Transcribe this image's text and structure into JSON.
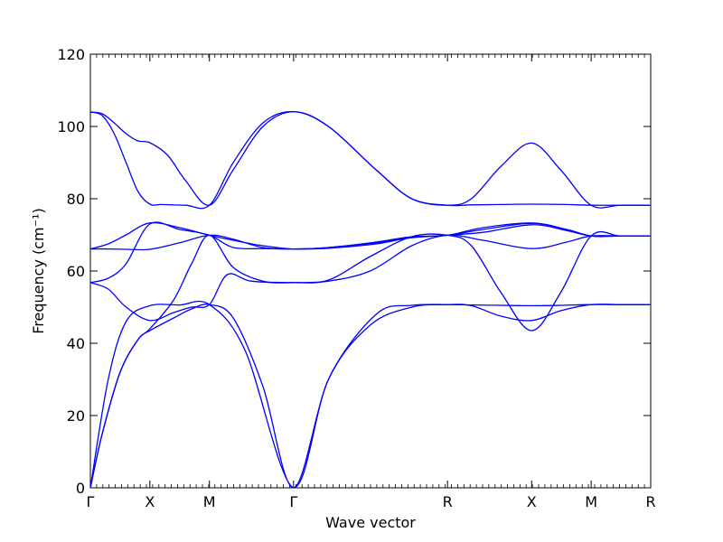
{
  "chart_data": {
    "type": "line",
    "xlabel": "Wave vector",
    "ylabel": "Frequency (cm⁻¹)",
    "ylim": [
      0,
      120
    ],
    "yticks": [
      0,
      20,
      40,
      60,
      80,
      100,
      120
    ],
    "grid": false,
    "line_color": "#0000ff",
    "kpoints": [
      {
        "label": "Γ",
        "pos": 0.0
      },
      {
        "label": "X",
        "pos": 0.5
      },
      {
        "label": "M",
        "pos": 1.0
      },
      {
        "label": "Γ",
        "pos": 1.707
      },
      {
        "label": "R",
        "pos": 3.0
      },
      {
        "label": "X",
        "pos": 3.707
      },
      {
        "label": "M",
        "pos": 4.207
      },
      {
        "label": "R",
        "pos": 4.707
      }
    ],
    "bands": [
      {
        "x": [
          0,
          0.1,
          0.25,
          0.4,
          0.5,
          0.7,
          0.85,
          1.0,
          1.2,
          1.45,
          1.707,
          2.0,
          2.35,
          2.7,
          3.0,
          3.2,
          3.45,
          3.707,
          3.95,
          4.207,
          4.45,
          4.707
        ],
        "y": [
          0,
          15,
          32,
          41,
          43.5,
          47,
          49.5,
          50.7,
          47,
          28,
          0,
          30,
          45,
          50,
          50.7,
          50.4,
          47.5,
          46.3,
          49,
          50.7,
          50.7,
          50.7
        ]
      },
      {
        "x": [
          0,
          0.1,
          0.25,
          0.4,
          0.5,
          0.7,
          0.85,
          1.0,
          1.2,
          1.45,
          1.707,
          2.0,
          2.35,
          2.7,
          3.0,
          3.2,
          3.45,
          3.707,
          3.95,
          4.207,
          4.45,
          4.707
        ],
        "y": [
          0,
          15,
          32,
          41,
          44,
          52,
          62,
          69.9,
          61,
          57.2,
          56.8,
          57.5,
          64,
          69.5,
          69.9,
          67,
          54,
          43.5,
          54,
          69.7,
          69.7,
          69.7
        ]
      },
      {
        "x": [
          0,
          0.15,
          0.3,
          0.5,
          0.75,
          1.0,
          1.3,
          1.707,
          2.0,
          2.4,
          2.7,
          3.0,
          3.2,
          3.45,
          3.707,
          3.95,
          4.207,
          4.45,
          4.707
        ],
        "y": [
          0,
          30,
          46,
          50.4,
          50.6,
          50.7,
          38,
          0,
          30,
          48,
          50.5,
          50.7,
          50.6,
          50.5,
          50.4,
          50.5,
          50.7,
          50.7,
          50.7
        ]
      },
      {
        "x": [
          0,
          0.15,
          0.3,
          0.5,
          0.7,
          0.85,
          1.0,
          1.15,
          1.35,
          1.707,
          2.0,
          2.35,
          2.7,
          3.0,
          3.3,
          3.707,
          4.0,
          4.207,
          4.45,
          4.707
        ],
        "y": [
          56.8,
          55,
          50,
          46.3,
          48.5,
          50,
          50.7,
          59,
          57.2,
          56.8,
          57.2,
          60,
          67,
          69.9,
          68.5,
          66.2,
          68,
          69.7,
          69.7,
          69.7
        ]
      },
      {
        "x": [
          0,
          0.15,
          0.3,
          0.5,
          0.75,
          1.0,
          1.2,
          1.45,
          1.707,
          2.0,
          2.4,
          2.7,
          3.0,
          3.3,
          3.707,
          4.0,
          4.207,
          4.45,
          4.707
        ],
        "y": [
          56.8,
          58,
          62,
          73,
          71.5,
          69.9,
          66.5,
          66.2,
          66.1,
          66.3,
          67.5,
          69.3,
          69.9,
          71.5,
          73.2,
          71.5,
          69.7,
          69.7,
          69.7
        ]
      },
      {
        "x": [
          0,
          0.15,
          0.3,
          0.5,
          0.75,
          1.0,
          1.2,
          1.45,
          1.707,
          2.0,
          2.4,
          2.7,
          3.0,
          3.3,
          3.707,
          4.0,
          4.207,
          4.45,
          4.707
        ],
        "y": [
          66.1,
          66.1,
          66,
          66,
          67.8,
          69.9,
          68.8,
          66.5,
          66.1,
          66.5,
          67.8,
          69.2,
          69.9,
          70.7,
          72.8,
          71.2,
          69.7,
          69.7,
          69.7
        ]
      },
      {
        "x": [
          0,
          0.15,
          0.3,
          0.5,
          0.75,
          1.0,
          1.2,
          1.45,
          1.707,
          2.0,
          2.4,
          2.7,
          3.0,
          3.3,
          3.707,
          4.0,
          4.207,
          4.45,
          4.707
        ],
        "y": [
          66.1,
          67.5,
          70,
          73.3,
          72,
          69.9,
          68.5,
          67,
          66.1,
          66.5,
          68,
          69.5,
          69.9,
          72,
          73.3,
          71.5,
          69.7,
          69.7,
          69.7
        ]
      },
      {
        "x": [
          0,
          0.1,
          0.2,
          0.3,
          0.4,
          0.5,
          0.6,
          0.8,
          1.0,
          1.2,
          1.45,
          1.707,
          2.0,
          2.4,
          2.7,
          3.0,
          3.2,
          3.45,
          3.707,
          4.0,
          4.207,
          4.45,
          4.707
        ],
        "y": [
          104,
          103,
          98,
          90,
          82,
          78.5,
          78.4,
          78.2,
          78.2,
          90,
          101,
          104.1,
          100,
          88,
          80,
          78.2,
          78.3,
          78.4,
          78.5,
          78.4,
          78.2,
          78.2,
          78.2
        ]
      },
      {
        "x": [
          0,
          0.1,
          0.2,
          0.3,
          0.4,
          0.5,
          0.65,
          0.8,
          1.0,
          1.2,
          1.45,
          1.707,
          2.0,
          2.4,
          2.7,
          3.0,
          3.2,
          3.45,
          3.707,
          3.95,
          4.207,
          4.45,
          4.707
        ],
        "y": [
          104,
          103.5,
          101,
          98,
          96,
          95.5,
          92,
          85,
          78.2,
          88,
          100,
          104.1,
          100,
          88,
          80,
          78.2,
          80,
          89,
          95.4,
          88,
          78.2,
          78.2,
          78.2
        ]
      }
    ]
  }
}
